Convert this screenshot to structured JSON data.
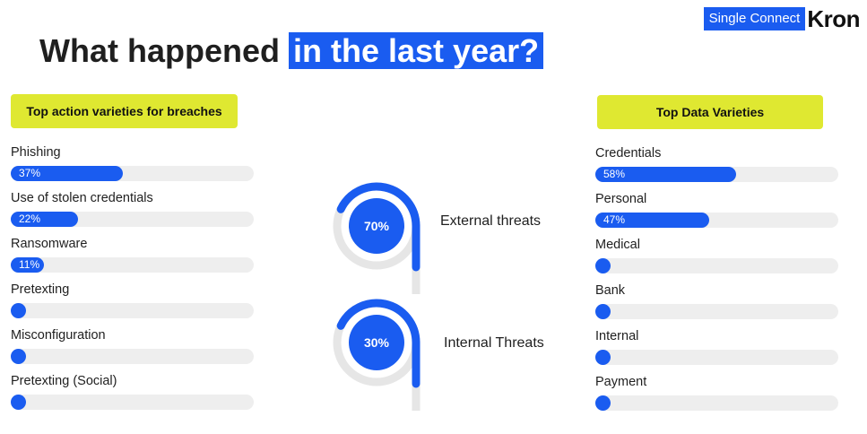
{
  "brand": {
    "tag": "Single Connect",
    "name": "Kron"
  },
  "title": {
    "main": "What happened",
    "highlight": "in the last year?"
  },
  "left_panel": {
    "header": "Top action varieties for breaches"
  },
  "right_panel": {
    "header": "Top Data Varieties"
  },
  "threats": [
    {
      "label": "External threats",
      "pct_text": "70%",
      "value": 70
    },
    {
      "label": "Internal Threats",
      "pct_text": "30%",
      "value": 30
    }
  ],
  "colors": {
    "accent": "#1a5cf0",
    "badge": "#dfe831",
    "track": "#eeeeee",
    "ring": "#e6e6e6"
  },
  "chart_data": [
    {
      "type": "bar",
      "title": "Top action varieties for breaches",
      "categories": [
        "Phishing",
        "Use of stolen credentials",
        "Ransomware",
        "Pretexting",
        "Misconfiguration",
        "Pretexting (Social)"
      ],
      "values": [
        37,
        22,
        11,
        5,
        5,
        3
      ],
      "value_labels": [
        "37%",
        "22%",
        "11%",
        "",
        "",
        ""
      ],
      "ylim": [
        0,
        80
      ]
    },
    {
      "type": "bar",
      "title": "Top Data Varieties",
      "categories": [
        "Credentials",
        "Personal",
        "Medical",
        "Bank",
        "Internal",
        "Payment"
      ],
      "values": [
        58,
        47,
        5,
        5,
        4,
        3
      ],
      "value_labels": [
        "58%",
        "47%",
        "",
        "",
        "",
        ""
      ],
      "ylim": [
        0,
        100
      ]
    },
    {
      "type": "pie",
      "categories": [
        "External threats",
        "Internal Threats"
      ],
      "values": [
        70,
        30
      ]
    }
  ]
}
